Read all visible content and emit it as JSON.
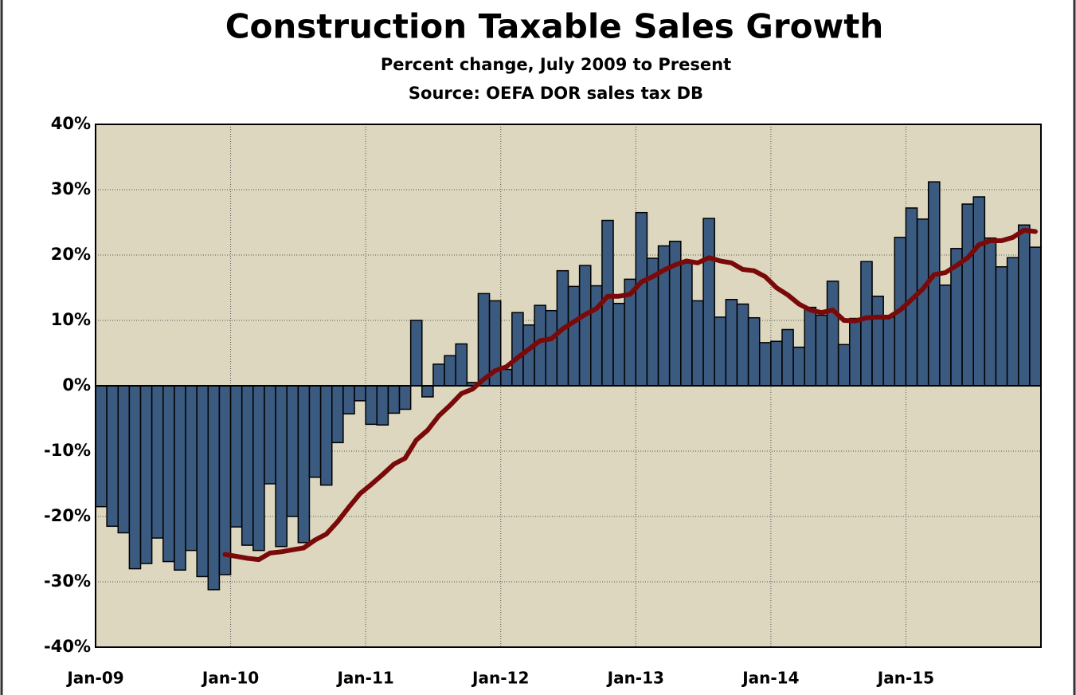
{
  "chart_data": {
    "type": "bar",
    "title": "Construction Taxable Sales Growth",
    "subtitle": [
      "Percent change, July 2009 to Present",
      "Source:  OEFA DOR sales tax DB"
    ],
    "categories": [
      "Jan-09",
      null,
      null,
      null,
      null,
      null,
      null,
      null,
      null,
      null,
      null,
      null,
      "Jan-10",
      null,
      null,
      null,
      null,
      null,
      null,
      null,
      null,
      null,
      null,
      null,
      "Jan-11",
      null,
      null,
      null,
      null,
      null,
      null,
      null,
      null,
      null,
      null,
      null,
      "Jan-12",
      null,
      null,
      null,
      null,
      null,
      null,
      null,
      null,
      null,
      null,
      null,
      "Jan-13",
      null,
      null,
      null,
      null,
      null,
      null,
      null,
      null,
      null,
      null,
      null,
      "Jan-14",
      null,
      null,
      null,
      null,
      null,
      null,
      null,
      null,
      null,
      null,
      null,
      "Jan-15",
      null,
      null,
      null,
      null,
      null,
      null,
      null,
      null,
      null,
      null,
      null
    ],
    "series": [
      {
        "type": "bar",
        "color": "#3b5a80",
        "values": [
          -18.5,
          -21.5,
          -22.5,
          -28,
          -27.2,
          -23.3,
          -26.9,
          -28.2,
          -25.2,
          -29.2,
          -31.2,
          -28.9,
          -21.6,
          -24.4,
          -25.2,
          -15,
          -24.6,
          -20,
          -24,
          -14,
          -15.2,
          -8.7,
          -4.3,
          -2.3,
          -5.9,
          -6,
          -4.2,
          -3.6,
          10,
          -1.7,
          3.3,
          4.6,
          6.4,
          0.5,
          14.1,
          13,
          2.5,
          11.2,
          9.3,
          12.3,
          11.5,
          17.6,
          15.2,
          18.4,
          15.3,
          25.3,
          12.6,
          16.3,
          26.5,
          19.5,
          21.4,
          22.1,
          19,
          13,
          25.6,
          10.5,
          13.2,
          12.5,
          10.4,
          6.6,
          6.8,
          8.6,
          5.9,
          12,
          10.8,
          16,
          6.3,
          10.3,
          19,
          13.7,
          10.5,
          22.7,
          27.2,
          25.5,
          31.2,
          15.4,
          21,
          27.8,
          28.9,
          22.6,
          18.2,
          19.6,
          24.6,
          21.2
        ]
      },
      {
        "type": "line",
        "color": "#7a0a0a",
        "values": [
          null,
          null,
          null,
          null,
          null,
          null,
          null,
          null,
          null,
          null,
          null,
          -25.8,
          -26.1,
          -26.4,
          -26.6,
          -25.6,
          -25.4,
          -25.1,
          -24.8,
          -23.6,
          -22.7,
          -20.8,
          -18.6,
          -16.5,
          -15.1,
          -13.6,
          -12,
          -11.1,
          -8.3,
          -6.8,
          -4.6,
          -3,
          -1.2,
          -0.5,
          1,
          2.3,
          2.9,
          4.3,
          5.6,
          6.9,
          7.2,
          8.7,
          9.8,
          10.9,
          11.8,
          13.7,
          13.7,
          14,
          15.9,
          16.7,
          17.7,
          18.5,
          19.1,
          18.8,
          19.6,
          19.1,
          18.8,
          17.8,
          17.6,
          16.7,
          15,
          13.9,
          12.5,
          11.6,
          11.2,
          11.6,
          10,
          9.9,
          10.4,
          10.5,
          10.5,
          11.6,
          13.2,
          14.8,
          17,
          17.3,
          18.4,
          19.6,
          21.6,
          22.2,
          22.2,
          22.7,
          23.8,
          23.6
        ]
      }
    ],
    "ylim": [
      -40,
      40
    ],
    "yticks": [
      {
        "value": -40,
        "label": "-40%"
      },
      {
        "value": -30,
        "label": "-30%"
      },
      {
        "value": -20,
        "label": "-20%"
      },
      {
        "value": -10,
        "label": "-10%"
      },
      {
        "value": 0,
        "label": "0%"
      },
      {
        "value": 10,
        "label": "10%"
      },
      {
        "value": 20,
        "label": "20%"
      },
      {
        "value": 30,
        "label": "30%"
      },
      {
        "value": 40,
        "label": "40%"
      }
    ],
    "grid": true,
    "background": "#ddd7bf"
  }
}
